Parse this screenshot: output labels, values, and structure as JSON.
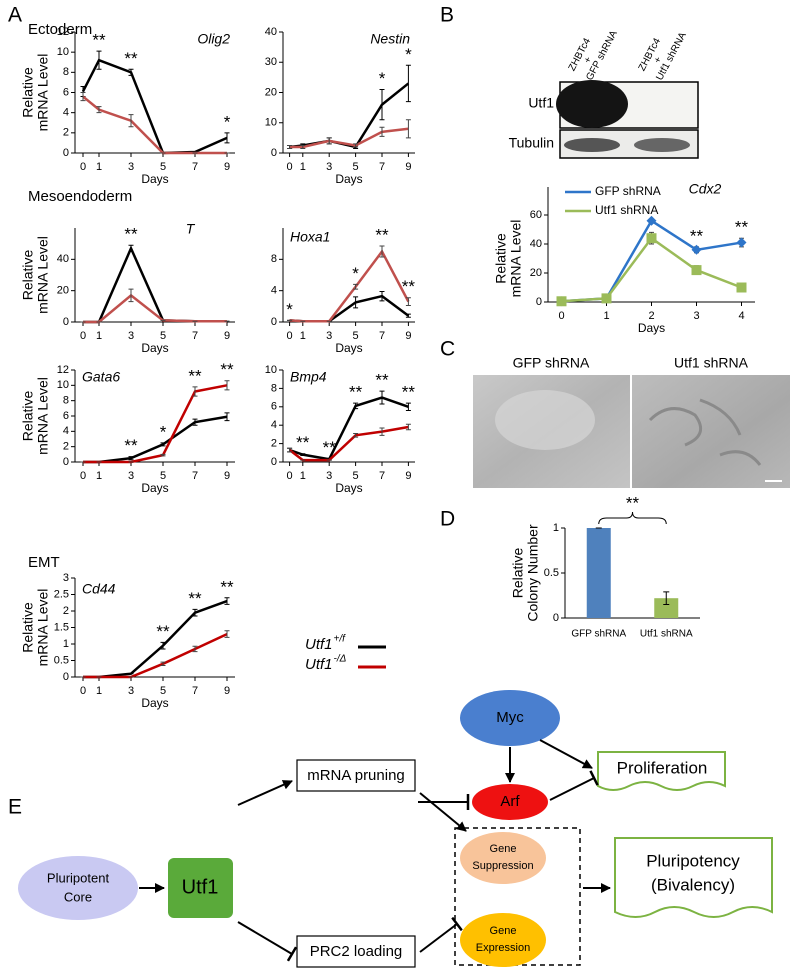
{
  "panel_labels": [
    "A",
    "B",
    "C",
    "D",
    "E"
  ],
  "section_labels": [
    "Ectoderm",
    "Mesoendoderm",
    "EMT"
  ],
  "panel_a_legend": [
    {
      "name": "Utf1",
      "superscript": "+/f",
      "color": "#000000"
    },
    {
      "name": "Utf1",
      "superscript": "-/Δ",
      "color": "#c00000"
    }
  ],
  "blot": {
    "lanes": [
      [
        "ZHBTc4",
        "+",
        "GFP shRNA"
      ],
      [
        "ZHBTc4",
        "+",
        "Utf1 shRNA"
      ]
    ],
    "rows": [
      "Utf1",
      "Tubulin"
    ]
  },
  "microscopy": {
    "labels": [
      "GFP shRNA",
      "Utf1 shRNA"
    ]
  },
  "diagram": {
    "nodes": [
      {
        "lines": [
          "Myc"
        ]
      },
      {
        "lines": [
          "Proliferation"
        ]
      },
      {
        "lines": [
          "mRNA pruning"
        ]
      },
      {
        "lines": [
          "Arf"
        ]
      },
      {
        "lines": [
          "Pluripotent",
          "Core"
        ]
      },
      {
        "lines": [
          "Utf1"
        ]
      },
      {
        "lines": [
          "Gene",
          "Suppression"
        ]
      },
      {
        "lines": [
          "Gene",
          "Expression"
        ]
      },
      {
        "lines": [
          "Pluripotency",
          "(Bivalency)"
        ]
      },
      {
        "lines": [
          "PRC2 loading"
        ]
      }
    ]
  },
  "chart_data": [
    {
      "type": "line",
      "title": "Olig2",
      "ylabel": [
        "Relative",
        "mRNA Level"
      ],
      "xlabel": "Days",
      "x": [
        0,
        1,
        3,
        5,
        7,
        9
      ],
      "xlim": [
        -0.5,
        9.5
      ],
      "xticks": [
        0,
        1,
        3,
        5,
        7,
        9
      ],
      "ylim": [
        0,
        12
      ],
      "yticks": [
        0,
        2,
        4,
        6,
        8,
        10,
        12
      ],
      "series": [
        {
          "color": "#000000",
          "values": [
            6.1,
            9.2,
            8.0,
            0,
            0.1,
            1.5
          ],
          "errors": [
            0.5,
            0.9,
            0.3,
            0,
            0,
            0.5
          ]
        },
        {
          "color": "#c0504d",
          "values": [
            5.6,
            4.3,
            3.2,
            0,
            0,
            0
          ],
          "errors": [
            0.4,
            0.3,
            0.6,
            0,
            0,
            0
          ]
        }
      ],
      "annotations": [
        {
          "x": 1,
          "text": "**"
        },
        {
          "x": 3,
          "text": "**"
        },
        {
          "x": 9,
          "text": "*"
        }
      ]
    },
    {
      "type": "line",
      "title": "Nestin",
      "xlabel": "Days",
      "x": [
        0,
        1,
        3,
        5,
        7,
        9
      ],
      "xlim": [
        -0.5,
        9.5
      ],
      "xticks": [
        0,
        1,
        3,
        5,
        7,
        9
      ],
      "ylim": [
        0,
        40
      ],
      "yticks": [
        0,
        10,
        20,
        30,
        40
      ],
      "series": [
        {
          "color": "#000000",
          "values": [
            2,
            2.5,
            4,
            2,
            16,
            23
          ],
          "errors": [
            0.5,
            0.5,
            1,
            0.5,
            5,
            6
          ]
        },
        {
          "color": "#c0504d",
          "values": [
            2,
            2,
            4,
            2.5,
            7,
            8
          ],
          "errors": [
            0.5,
            0.5,
            1,
            0.5,
            1.5,
            3
          ]
        }
      ],
      "annotations": [
        {
          "x": 7,
          "text": "*"
        },
        {
          "x": 9,
          "text": "*"
        }
      ]
    },
    {
      "type": "line",
      "title": "T",
      "ylabel": [
        "Relative",
        "mRNA Level"
      ],
      "xlabel": "Days",
      "x": [
        0,
        1,
        3,
        5,
        7,
        9
      ],
      "xlim": [
        -0.5,
        9.5
      ],
      "xticks": [
        0,
        1,
        3,
        5,
        7,
        9
      ],
      "ylim": [
        0,
        60
      ],
      "yticks": [
        0,
        20,
        40
      ],
      "series": [
        {
          "color": "#000000",
          "values": [
            0,
            0,
            47,
            1,
            0.5,
            0.5
          ],
          "errors": [
            0,
            0,
            2,
            0,
            0,
            0
          ]
        },
        {
          "color": "#c0504d",
          "values": [
            0,
            0,
            17,
            1,
            0.5,
            0.5
          ],
          "errors": [
            0,
            0,
            4,
            0,
            0,
            0
          ]
        }
      ],
      "annotations": [
        {
          "x": 3,
          "text": "**"
        }
      ]
    },
    {
      "type": "line",
      "title": "Hoxa1",
      "xlabel": "Days",
      "x": [
        0,
        1,
        3,
        5,
        7,
        9
      ],
      "xlim": [
        -0.5,
        9.5
      ],
      "xticks": [
        0,
        1,
        3,
        5,
        7,
        9
      ],
      "ylim": [
        0,
        12
      ],
      "yticks": [
        0,
        4,
        8
      ],
      "series": [
        {
          "color": "#000000",
          "values": [
            0.2,
            0.1,
            0.1,
            2.5,
            3.3,
            0.8
          ],
          "errors": [
            0,
            0,
            0,
            0.7,
            0.6,
            0.2
          ]
        },
        {
          "color": "#c0504d",
          "values": [
            0.2,
            0.1,
            0.1,
            4.5,
            9,
            2.6
          ],
          "errors": [
            0,
            0,
            0,
            0.3,
            0.7,
            0.5
          ]
        }
      ],
      "annotations": [
        {
          "x": 0,
          "text": "*"
        },
        {
          "x": 5,
          "text": "*"
        },
        {
          "x": 7,
          "text": "**"
        },
        {
          "x": 9,
          "text": "**"
        }
      ]
    },
    {
      "type": "line",
      "title": "Gata6",
      "ylabel": [
        "Relative",
        "mRNA Level"
      ],
      "xlabel": "Days",
      "x": [
        0,
        1,
        3,
        5,
        7,
        9
      ],
      "xlim": [
        -0.5,
        9.5
      ],
      "xticks": [
        0,
        1,
        3,
        5,
        7,
        9
      ],
      "ylim": [
        0,
        12
      ],
      "yticks": [
        0,
        2,
        4,
        6,
        8,
        10,
        12
      ],
      "series": [
        {
          "color": "#000000",
          "values": [
            0,
            0,
            0.5,
            2.3,
            5.2,
            5.9
          ],
          "errors": [
            0,
            0,
            0.2,
            0.2,
            0.4,
            0.5
          ]
        },
        {
          "color": "#c00000",
          "values": [
            0,
            0,
            0,
            0.9,
            9.2,
            10
          ],
          "errors": [
            0,
            0,
            0,
            0.1,
            0.6,
            0.6
          ]
        }
      ],
      "annotations": [
        {
          "x": 3,
          "text": "**"
        },
        {
          "x": 5,
          "text": "*"
        },
        {
          "x": 7,
          "text": "**"
        },
        {
          "x": 9,
          "text": "**"
        }
      ]
    },
    {
      "type": "line",
      "title": "Bmp4",
      "xlabel": "Days",
      "x": [
        0,
        1,
        3,
        5,
        7,
        9
      ],
      "xlim": [
        -0.5,
        9.5
      ],
      "xticks": [
        0,
        1,
        3,
        5,
        7,
        9
      ],
      "ylim": [
        0,
        10
      ],
      "yticks": [
        0,
        2,
        4,
        6,
        8,
        10
      ],
      "series": [
        {
          "color": "#000000",
          "values": [
            1.3,
            0.8,
            0.3,
            6.1,
            7,
            6
          ],
          "errors": [
            0.2,
            0.1,
            0.1,
            0.3,
            0.7,
            0.4
          ]
        },
        {
          "color": "#c00000",
          "values": [
            1.3,
            0.2,
            0.2,
            2.9,
            3.3,
            3.8
          ],
          "errors": [
            0.2,
            0,
            0,
            0.2,
            0.4,
            0.3
          ]
        }
      ],
      "annotations": [
        {
          "x": 1,
          "text": "**"
        },
        {
          "x": 3,
          "text": "**"
        },
        {
          "x": 5,
          "text": "**"
        },
        {
          "x": 7,
          "text": "**"
        },
        {
          "x": 9,
          "text": "**"
        }
      ]
    },
    {
      "type": "line",
      "title": "Cd44",
      "ylabel": [
        "Relative",
        "mRNA Level"
      ],
      "xlabel": "Days",
      "x": [
        0,
        1,
        3,
        5,
        7,
        9
      ],
      "xlim": [
        -0.5,
        9.5
      ],
      "xticks": [
        0,
        1,
        3,
        5,
        7,
        9
      ],
      "ylim": [
        0,
        3
      ],
      "yticks": [
        0,
        0.5,
        1,
        1.5,
        2,
        2.5,
        3
      ],
      "series": [
        {
          "color": "#000000",
          "values": [
            0,
            0,
            0.1,
            0.95,
            1.95,
            2.3
          ],
          "errors": [
            0,
            0,
            0,
            0.1,
            0.1,
            0.1
          ]
        },
        {
          "color": "#c00000",
          "values": [
            0,
            0,
            0,
            0.4,
            0.85,
            1.3
          ],
          "errors": [
            0,
            0,
            0,
            0.05,
            0.08,
            0.1
          ]
        }
      ],
      "annotations": [
        {
          "x": 5,
          "text": "**"
        },
        {
          "x": 7,
          "text": "**"
        },
        {
          "x": 9,
          "text": "**"
        }
      ]
    },
    {
      "type": "line",
      "title": "Cdx2",
      "ylabel": [
        "Relative",
        "mRNA Level"
      ],
      "xlabel": "Days",
      "x": [
        0,
        1,
        2,
        3,
        4
      ],
      "xlim": [
        -0.3,
        4.3
      ],
      "xticks": [
        0,
        1,
        2,
        3,
        4
      ],
      "ylim": [
        0,
        60
      ],
      "yticks": [
        0,
        20,
        40,
        60
      ],
      "series": [
        {
          "name": "GFP shRNA",
          "color": "#2e75c9",
          "marker": "diamond",
          "values": [
            0.5,
            2.5,
            56,
            36,
            41
          ],
          "errors": [
            0,
            0,
            1,
            2,
            3
          ]
        },
        {
          "name": "Utf1 shRNA",
          "color": "#9bbb59",
          "marker": "square",
          "values": [
            0.5,
            2.5,
            44,
            22,
            10
          ],
          "errors": [
            0,
            0,
            4,
            3,
            3
          ]
        }
      ],
      "annotations": [
        {
          "x": 3,
          "text": "**"
        },
        {
          "x": 4,
          "text": "**"
        }
      ]
    },
    {
      "type": "bar",
      "ylabel": [
        "Relative",
        "Colony Number"
      ],
      "categories": [
        "GFP shRNA",
        "Utf1 shRNA"
      ],
      "values": [
        1,
        0.22
      ],
      "errors": [
        0,
        0.07
      ],
      "colors": [
        "#4f81bd",
        "#9bbb59"
      ],
      "ylim": [
        0,
        1
      ],
      "yticks": [
        0,
        0.5,
        1
      ],
      "annotations": [
        {
          "text": "**"
        }
      ]
    }
  ]
}
